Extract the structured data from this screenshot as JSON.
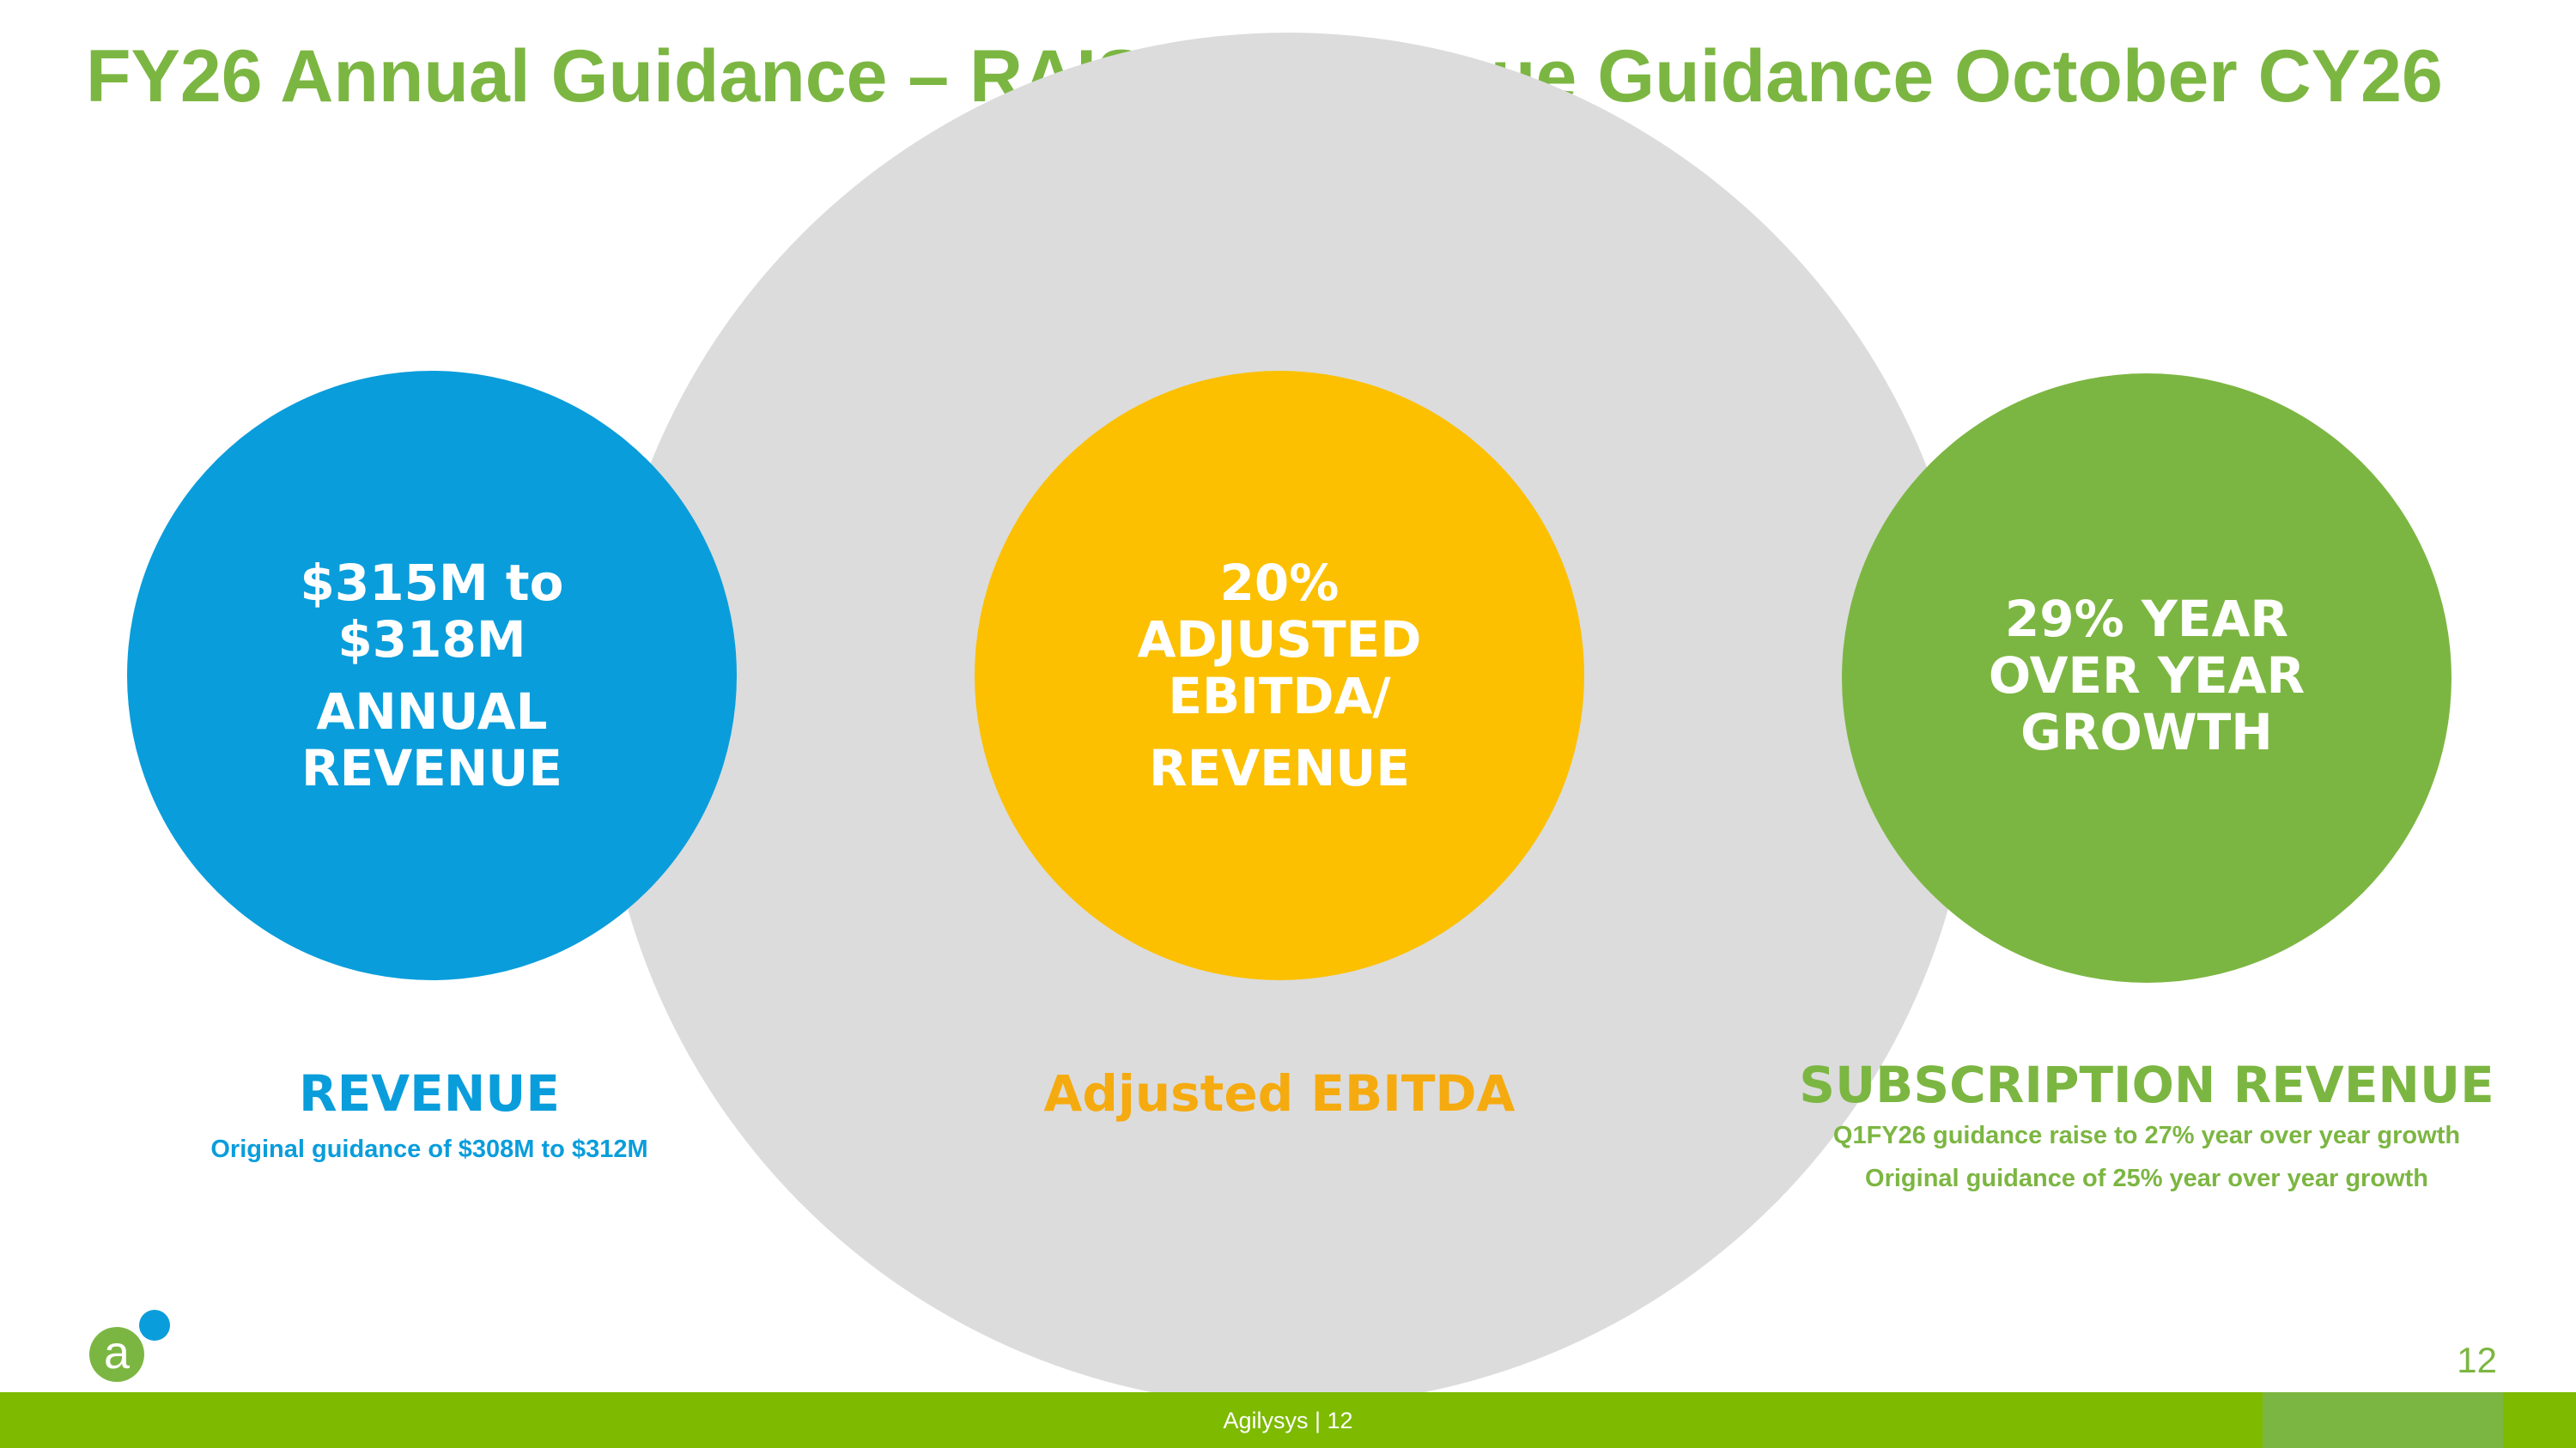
{
  "title": "FY26 Annual Guidance – RAISED Revenue Guidance October CY26",
  "colors": {
    "accent_green": "#7cb642",
    "blue": "#0a9ddb",
    "yellow": "#fcc000",
    "caption_orange": "#f5ab0f",
    "background_circle": "#dcdcdc",
    "footer_bar": "#7dba00"
  },
  "circles": {
    "revenue": {
      "value_line_1": "$315M to",
      "value_line_2": "$318M",
      "label_line_1": "ANNUAL",
      "label_line_2": "REVENUE"
    },
    "ebitda": {
      "value": "20%",
      "label_line_1": "ADJUSTED",
      "label_line_2": "EBITDA/",
      "label_line_3": "REVENUE"
    },
    "subscription": {
      "line_1": "29% YEAR",
      "line_2": "OVER YEAR",
      "line_3": "GROWTH"
    }
  },
  "captions": {
    "revenue": {
      "heading": "REVENUE",
      "note": "Original guidance of $308M to $312M"
    },
    "ebitda": {
      "heading": "Adjusted EBITDA"
    },
    "subscription": {
      "heading": "SUBSCRIPTION REVENUE",
      "note_1": "Q1FY26 guidance raise to 27% year over year growth",
      "note_2": "Original guidance of 25% year over year growth"
    }
  },
  "logo": {
    "letter": "a",
    "icon": "agilysys-logo-icon"
  },
  "page_number": "12",
  "footer": {
    "text": "Agilysys  |  12"
  }
}
